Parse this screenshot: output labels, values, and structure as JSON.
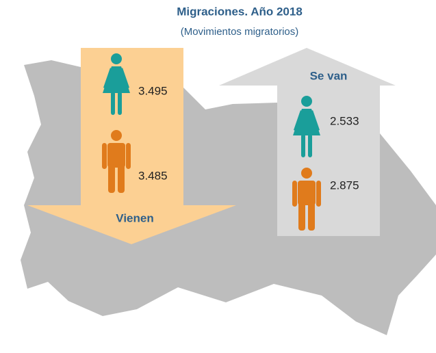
{
  "title": "Migraciones. Año 2018",
  "subtitle": "(Movimientos migratorios)",
  "incoming": {
    "label": "Vienen",
    "women": "3.495",
    "men": "3.485"
  },
  "outgoing": {
    "label": "Se van",
    "women": "2.533",
    "men": "2.875"
  }
}
